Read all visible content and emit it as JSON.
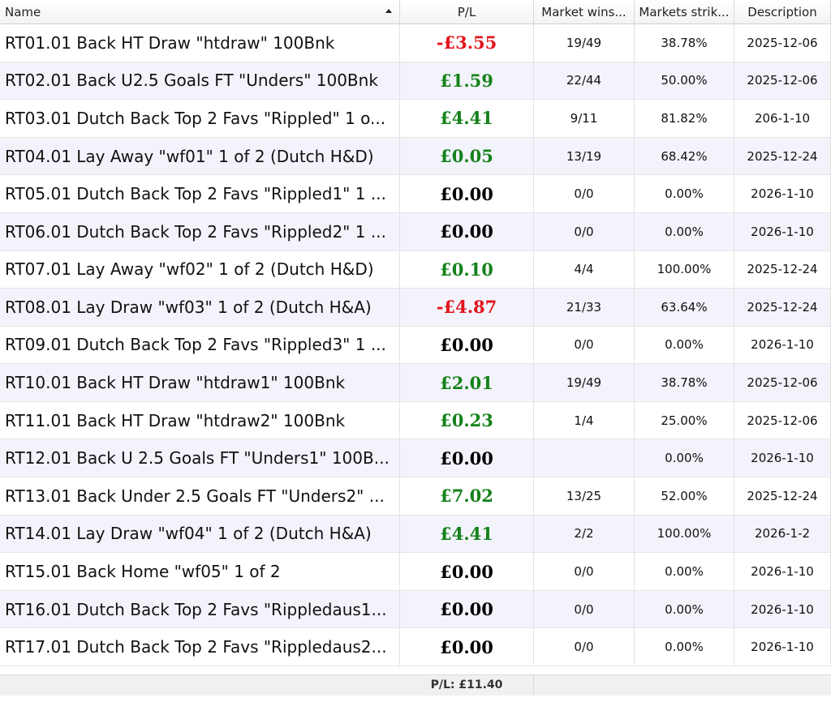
{
  "header": {
    "columns": [
      "Name",
      "P/L",
      "Market wins...",
      "Markets strik...",
      "Description"
    ],
    "sort_column": 0
  },
  "table": {
    "rows": [
      [
        "RT01.01 Back HT Draw \"htdraw\" 100Bnk",
        "-£3.55",
        "19/49",
        "38.78%",
        "2025-12-06"
      ],
      [
        "RT02.01 Back U2.5 Goals FT \"Unders\" 100Bnk",
        "£1.59",
        "22/44",
        "50.00%",
        "2025-12-06"
      ],
      [
        "RT03.01 Dutch Back Top 2 Favs \"Rippled\" 1 o...",
        "£4.41",
        "9/11",
        "81.82%",
        "206-1-10"
      ],
      [
        "RT04.01 Lay Away \"wf01\" 1 of 2 (Dutch H&D)",
        "£0.05",
        "13/19",
        "68.42%",
        "2025-12-24"
      ],
      [
        "RT05.01 Dutch Back Top 2 Favs \"Rippled1\" 1 ...",
        "£0.00",
        "0/0",
        "0.00%",
        "2026-1-10"
      ],
      [
        "RT06.01 Dutch Back Top 2 Favs \"Rippled2\" 1 ...",
        "£0.00",
        "0/0",
        "0.00%",
        "2026-1-10"
      ],
      [
        "RT07.01 Lay Away \"wf02\" 1 of 2 (Dutch H&D)",
        "£0.10",
        "4/4",
        "100.00%",
        "2025-12-24"
      ],
      [
        "RT08.01 Lay Draw \"wf03\" 1 of 2 (Dutch H&A)",
        "-£4.87",
        "21/33",
        "63.64%",
        "2025-12-24"
      ],
      [
        "RT09.01 Dutch Back Top 2 Favs \"Rippled3\" 1 ...",
        "£0.00",
        "0/0",
        "0.00%",
        "2026-1-10"
      ],
      [
        "RT10.01 Back HT Draw \"htdraw1\" 100Bnk",
        "£2.01",
        "19/49",
        "38.78%",
        "2025-12-06"
      ],
      [
        "RT11.01 Back HT Draw \"htdraw2\" 100Bnk",
        "£0.23",
        "1/4",
        "25.00%",
        "2025-12-06"
      ],
      [
        "RT12.01 Back U 2.5 Goals FT \"Unders1\" 100B...",
        "£0.00",
        null,
        "0.00%",
        "2026-1-10"
      ],
      [
        "RT13.01 Back Under 2.5 Goals FT \"Unders2\" ...",
        "£7.02",
        "13/25",
        "52.00%",
        "2025-12-24"
      ],
      [
        "RT14.01 Lay Draw \"wf04\" 1 of 2 (Dutch H&A)",
        "£4.41",
        "2/2",
        "100.00%",
        "2026-1-2"
      ],
      [
        "RT15.01 Back Home \"wf05\" 1 of 2",
        "£0.00",
        "0/0",
        "0.00%",
        "2026-1-10"
      ],
      [
        "RT16.01 Dutch Back Top 2 Favs \"Rippledaus1...",
        "£0.00",
        "0/0",
        "0.00%",
        "2026-1-10"
      ],
      [
        "RT17.01 Dutch Back Top 2 Favs \"Rippledaus2...",
        "£0.00",
        "0/0",
        "0.00%",
        "2026-1-10"
      ]
    ],
    "pl_colors": [
      "#e3141c",
      "#14821a",
      "#14821a",
      "#14821a",
      "#000000",
      "#000000",
      "#14821a",
      "#e3141c",
      "#000000",
      "#14821a",
      "#14821a",
      "#000000",
      "#14821a",
      "#14821a",
      "#000000",
      "#000000",
      "#000000"
    ]
  },
  "footer": {
    "total": "P/L: £11.40"
  }
}
